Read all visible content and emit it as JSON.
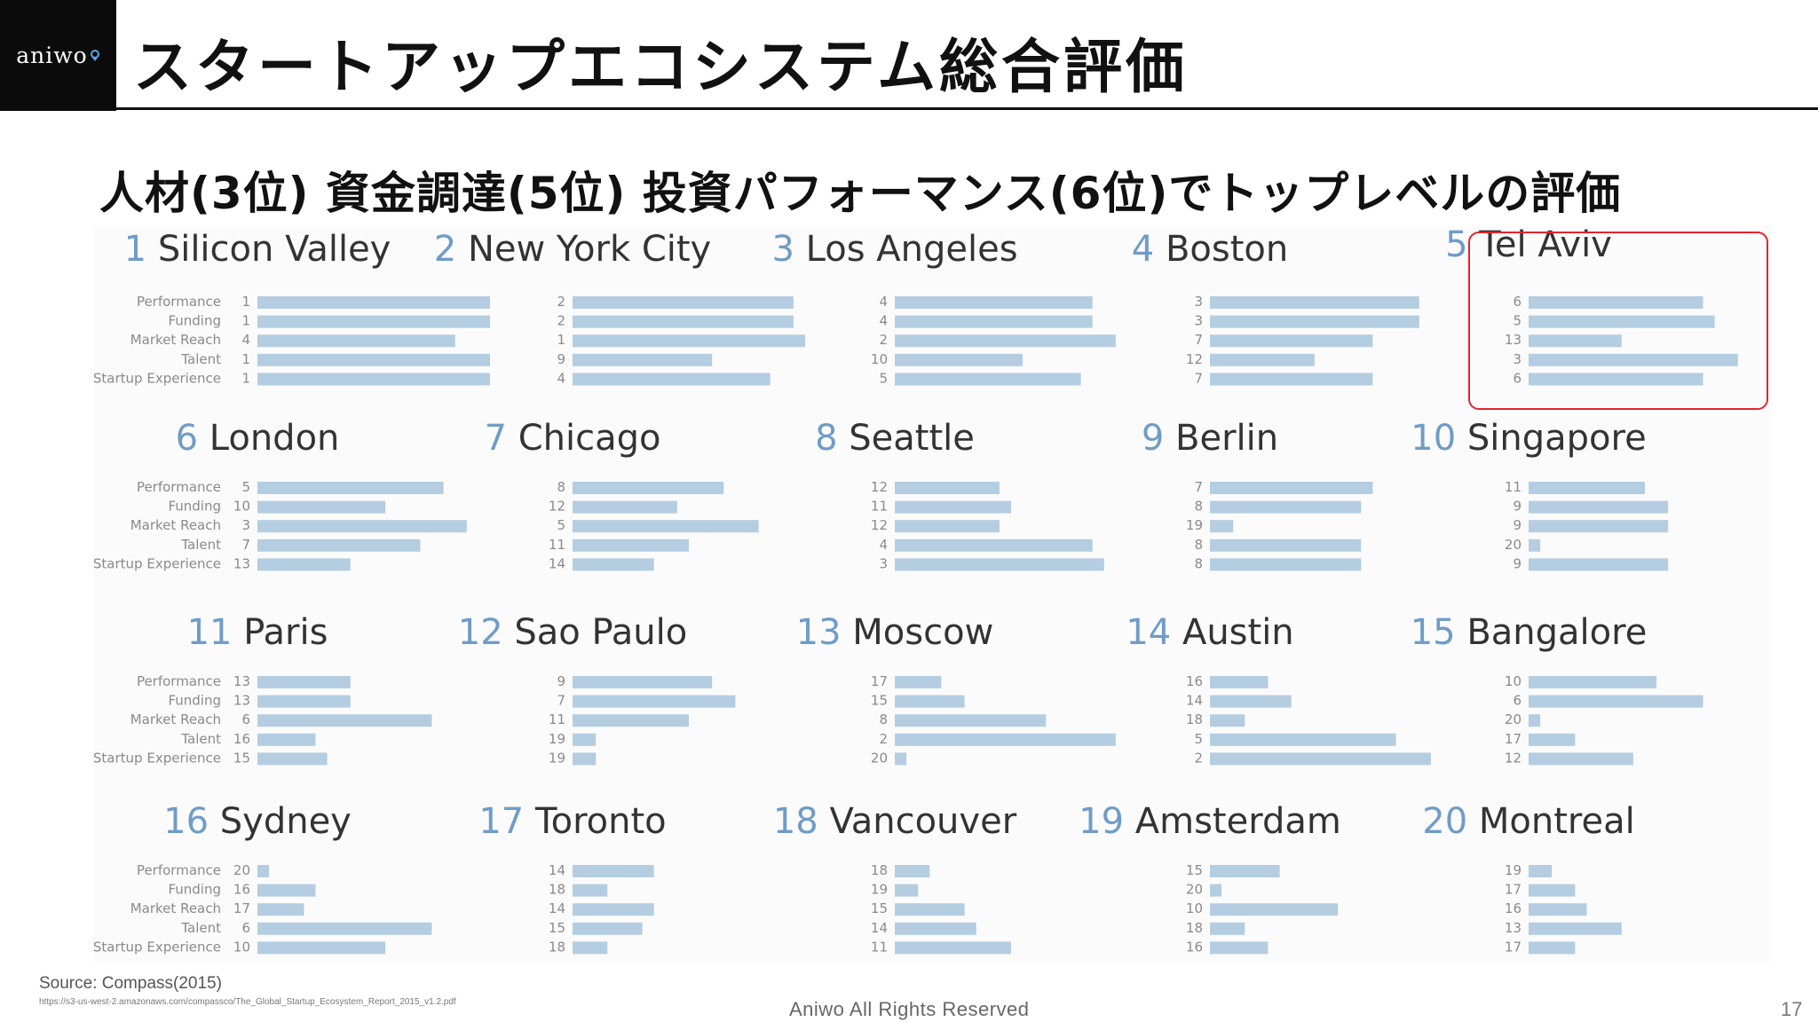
{
  "brand": {
    "logo_text": "aniwo"
  },
  "header": {
    "title": "スタートアップエコシステム総合評価"
  },
  "subtitle": "人材(3位) 資金調達(5位) 投資パフォーマンス(6位)でトップレベルの評価",
  "colors": {
    "bar": "#b4cde1",
    "rank_number": "#6f9cc6",
    "highlight": "#e0262c",
    "label": "#8a8a8a"
  },
  "chart_data": {
    "type": "bar",
    "orientation": "horizontal",
    "small_multiples": true,
    "value_note": "bar length encodes rank within category (shorter bar = lower rank)",
    "categories": [
      "Performance",
      "Funding",
      "Market Reach",
      "Talent",
      "Startup Experience"
    ],
    "highlighted": "Tel Aviv",
    "ecosystems": [
      {
        "rank": "1",
        "name": "Silicon Valley",
        "values": [
          1,
          1,
          4,
          1,
          1
        ]
      },
      {
        "rank": "2",
        "name": "New York City",
        "values": [
          2,
          2,
          1,
          9,
          4
        ]
      },
      {
        "rank": "3",
        "name": "Los Angeles",
        "values": [
          4,
          4,
          2,
          10,
          5
        ]
      },
      {
        "rank": "4",
        "name": "Boston",
        "values": [
          3,
          3,
          7,
          12,
          7
        ]
      },
      {
        "rank": "5",
        "name": "Tel Aviv",
        "values": [
          6,
          5,
          13,
          3,
          6
        ]
      },
      {
        "rank": "6",
        "name": "London",
        "values": [
          5,
          10,
          3,
          7,
          13
        ]
      },
      {
        "rank": "7",
        "name": "Chicago",
        "values": [
          8,
          12,
          5,
          11,
          14
        ]
      },
      {
        "rank": "8",
        "name": "Seattle",
        "values": [
          12,
          11,
          12,
          4,
          3
        ]
      },
      {
        "rank": "9",
        "name": "Berlin",
        "values": [
          7,
          8,
          19,
          8,
          8
        ]
      },
      {
        "rank": "10",
        "name": "Singapore",
        "values": [
          11,
          9,
          9,
          20,
          9
        ]
      },
      {
        "rank": "11",
        "name": "Paris",
        "values": [
          13,
          13,
          6,
          16,
          15
        ]
      },
      {
        "rank": "12",
        "name": "Sao Paulo",
        "values": [
          9,
          7,
          11,
          19,
          19
        ]
      },
      {
        "rank": "13",
        "name": "Moscow",
        "values": [
          17,
          15,
          8,
          2,
          20
        ]
      },
      {
        "rank": "14",
        "name": "Austin",
        "values": [
          16,
          14,
          18,
          5,
          2
        ]
      },
      {
        "rank": "15",
        "name": "Bangalore",
        "values": [
          10,
          6,
          20,
          17,
          12
        ]
      },
      {
        "rank": "16",
        "name": "Sydney",
        "values": [
          20,
          16,
          17,
          6,
          10
        ]
      },
      {
        "rank": "17",
        "name": "Toronto",
        "values": [
          14,
          18,
          14,
          15,
          18
        ]
      },
      {
        "rank": "18",
        "name": "Vancouver",
        "values": [
          18,
          19,
          15,
          14,
          11
        ]
      },
      {
        "rank": "19",
        "name": "Amsterdam",
        "values": [
          15,
          20,
          10,
          18,
          16
        ]
      },
      {
        "rank": "20",
        "name": "Montreal",
        "values": [
          19,
          17,
          16,
          13,
          17
        ]
      }
    ]
  },
  "footer": {
    "source": "Source: Compass(2015)",
    "source_url": "https://s3-us-west-2.amazonaws.com/compassco/The_Global_Startup_Ecosystem_Report_2015_v1.2.pdf",
    "rights": "Aniwo All Rights Reserved",
    "page": "17"
  }
}
